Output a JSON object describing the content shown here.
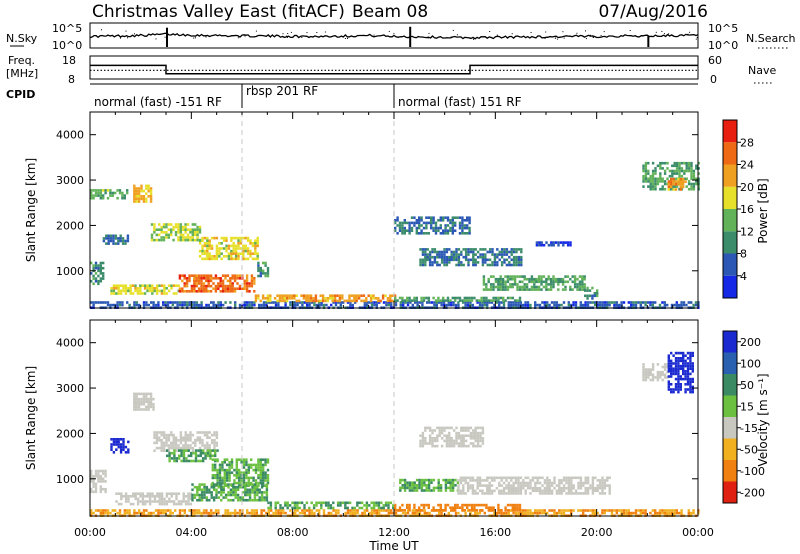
{
  "header": {
    "title": "Christmas Valley East (fitACF)",
    "beam": "Beam 08",
    "date": "07/Aug/2016"
  },
  "top_panels": {
    "nsky_label": "N.Sky",
    "nsky_ticks": [
      "10^5",
      "10^0"
    ],
    "nsearch_label": "N.Search",
    "nsearch_ticks": [
      "10^5",
      "10^0"
    ],
    "freq_label_1": "Freq.",
    "freq_label_2": "[MHz]",
    "freq_ticks": [
      "18",
      "8"
    ],
    "nave_label": "Nave",
    "nave_ticks": [
      "60",
      "0"
    ],
    "cpid_label": "CPID",
    "cpid_segments": [
      {
        "label": "normal (fast) -151 RF",
        "start_h": 0,
        "end_h": 6
      },
      {
        "label": "rbsp 201 RF",
        "start_h": 6,
        "end_h": 12
      },
      {
        "label": "normal (fast) 151 RF",
        "start_h": 12,
        "end_h": 24
      }
    ]
  },
  "axes": {
    "ylabel": "Slant Range [km]",
    "xlabel": "Time UT",
    "y_ticks": [
      "1000",
      "2000",
      "3000",
      "4000"
    ],
    "x_ticks": [
      "00:00",
      "04:00",
      "08:00",
      "12:00",
      "16:00",
      "20:00",
      "00:00"
    ]
  },
  "colorbars": {
    "power": {
      "label": "Power [dB]",
      "ticks": [
        "4",
        "8",
        "12",
        "16",
        "20",
        "24",
        "28"
      ],
      "colors": [
        "#1428e6",
        "#2a58b4",
        "#3b8c6a",
        "#62b25a",
        "#e6e02a",
        "#f0a020",
        "#ee6a14",
        "#e81e0e"
      ]
    },
    "velocity": {
      "label": "Velocity [m s⁻¹]",
      "ticks": [
        "200",
        "100",
        "50",
        "15",
        "-15",
        "-50",
        "-100",
        "-200"
      ],
      "colors": [
        "#1a2ad0",
        "#2a60b0",
        "#3a8a64",
        "#6cc040",
        "#c8c8c0",
        "#f0b020",
        "#f08010",
        "#e02010"
      ]
    }
  },
  "chart_data": [
    {
      "type": "line",
      "name": "N.Sky",
      "x_unit": "hours UT",
      "x": [
        0,
        1,
        2,
        3,
        4,
        5,
        6,
        7,
        8,
        9,
        10,
        11,
        12,
        13,
        14,
        15,
        16,
        17,
        18,
        19,
        20,
        21,
        22,
        23,
        24
      ],
      "values_log10": [
        2.3,
        2.4,
        2.5,
        2.8,
        2.6,
        2.5,
        2.4,
        2.4,
        2.3,
        2.3,
        2.4,
        2.5,
        2.3,
        2.2,
        2.1,
        2.0,
        2.1,
        2.2,
        2.2,
        2.3,
        2.3,
        2.4,
        2.4,
        2.5,
        2.5
      ],
      "ylim_log10": [
        0,
        5
      ]
    },
    {
      "type": "line",
      "name": "Freq.",
      "x_unit": "hours UT",
      "x": [
        0,
        3,
        3,
        15,
        15,
        24
      ],
      "values": [
        14,
        14,
        10,
        10,
        14,
        14
      ],
      "ylim": [
        8,
        18
      ]
    },
    {
      "type": "line",
      "name": "Nave",
      "x_unit": "hours UT",
      "x": [
        0,
        24
      ],
      "values": [
        22,
        22
      ],
      "ylim": [
        0,
        60
      ]
    },
    {
      "type": "heatmap",
      "name": "Power",
      "x_unit": "hours UT",
      "y_unit": "km",
      "xlim": [
        0,
        24
      ],
      "ylim": [
        180,
        4500
      ],
      "vlim": [
        0,
        30
      ],
      "regions": [
        {
          "t0": 0.0,
          "t1": 24.0,
          "r0": 200,
          "r1": 330,
          "level": 8
        },
        {
          "t0": 0.0,
          "t1": 1.5,
          "r0": 2600,
          "r1": 2800,
          "level": 16
        },
        {
          "t0": 0.0,
          "t1": 0.5,
          "r0": 700,
          "r1": 1200,
          "level": 12
        },
        {
          "t0": 0.5,
          "t1": 1.5,
          "r0": 1600,
          "r1": 1800,
          "level": 10
        },
        {
          "t0": 1.7,
          "t1": 2.4,
          "r0": 2500,
          "r1": 2900,
          "level": 22
        },
        {
          "t0": 2.4,
          "t1": 4.3,
          "r0": 1650,
          "r1": 2050,
          "level": 18
        },
        {
          "t0": 4.3,
          "t1": 6.6,
          "r0": 1250,
          "r1": 1750,
          "level": 20
        },
        {
          "t0": 6.6,
          "t1": 7.0,
          "r0": 900,
          "r1": 1200,
          "level": 12
        },
        {
          "t0": 0.8,
          "t1": 3.5,
          "r0": 480,
          "r1": 700,
          "level": 20
        },
        {
          "t0": 3.5,
          "t1": 6.5,
          "r0": 560,
          "r1": 920,
          "level": 28
        },
        {
          "t0": 6.5,
          "t1": 12.0,
          "r0": 330,
          "r1": 480,
          "level": 24
        },
        {
          "t0": 12.0,
          "t1": 17.0,
          "r0": 330,
          "r1": 430,
          "level": 14
        },
        {
          "t0": 12.0,
          "t1": 15.0,
          "r0": 1800,
          "r1": 2200,
          "level": 10
        },
        {
          "t0": 13.0,
          "t1": 17.0,
          "r0": 1100,
          "r1": 1500,
          "level": 10
        },
        {
          "t0": 15.5,
          "t1": 19.5,
          "r0": 600,
          "r1": 900,
          "level": 14
        },
        {
          "t0": 19.5,
          "t1": 20.0,
          "r0": 400,
          "r1": 650,
          "level": 12
        },
        {
          "t0": 17.5,
          "t1": 19.0,
          "r0": 1550,
          "r1": 1650,
          "level": 6
        },
        {
          "t0": 21.8,
          "t1": 24.0,
          "r0": 2800,
          "r1": 3400,
          "level": 14
        },
        {
          "t0": 22.8,
          "t1": 23.5,
          "r0": 2800,
          "r1": 3050,
          "level": 24
        }
      ]
    },
    {
      "type": "heatmap",
      "name": "Velocity",
      "x_unit": "hours UT",
      "y_unit": "km",
      "xlim": [
        0,
        24
      ],
      "ylim": [
        180,
        4500
      ],
      "vlim": [
        -250,
        250
      ],
      "regions": [
        {
          "t0": 0.0,
          "t1": 24.0,
          "r0": 200,
          "r1": 330,
          "v": -30
        },
        {
          "t0": 0.0,
          "t1": 0.6,
          "r0": 700,
          "r1": 1200,
          "v": 0
        },
        {
          "t0": 0.8,
          "t1": 1.5,
          "r0": 1600,
          "r1": 1900,
          "v": 230
        },
        {
          "t0": 1.7,
          "t1": 2.5,
          "r0": 2500,
          "r1": 2900,
          "v": 0
        },
        {
          "t0": 2.5,
          "t1": 5.0,
          "r0": 1600,
          "r1": 2050,
          "v": 0
        },
        {
          "t0": 3.0,
          "t1": 5.0,
          "r0": 1400,
          "r1": 1650,
          "v": 30
        },
        {
          "t0": 4.8,
          "t1": 7.0,
          "r0": 850,
          "r1": 1450,
          "v": 30
        },
        {
          "t0": 1.0,
          "t1": 4.0,
          "r0": 470,
          "r1": 700,
          "v": 0
        },
        {
          "t0": 4.0,
          "t1": 7.0,
          "r0": 500,
          "r1": 900,
          "v": 30
        },
        {
          "t0": 7.0,
          "t1": 12.0,
          "r0": 330,
          "r1": 500,
          "v": 30
        },
        {
          "t0": 12.0,
          "t1": 17.0,
          "r0": 330,
          "r1": 450,
          "v": -60
        },
        {
          "t0": 12.2,
          "t1": 14.5,
          "r0": 750,
          "r1": 1000,
          "v": 30
        },
        {
          "t0": 13.0,
          "t1": 15.5,
          "r0": 1700,
          "r1": 2150,
          "v": 0
        },
        {
          "t0": 14.5,
          "t1": 20.5,
          "r0": 700,
          "r1": 1050,
          "v": 0
        },
        {
          "t0": 21.8,
          "t1": 22.8,
          "r0": 3200,
          "r1": 3550,
          "v": 0
        },
        {
          "t0": 22.8,
          "t1": 23.8,
          "r0": 2900,
          "r1": 3800,
          "v": 220
        }
      ]
    }
  ]
}
